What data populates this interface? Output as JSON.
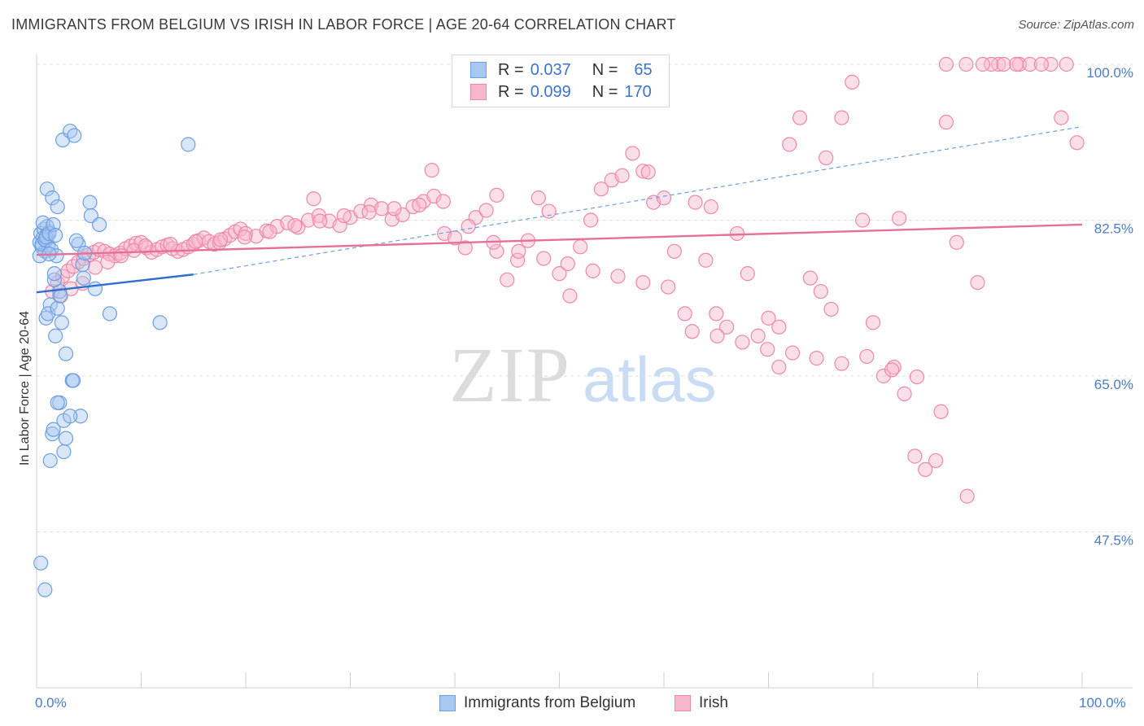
{
  "title": "IMMIGRANTS FROM BELGIUM VS IRISH IN LABOR FORCE | AGE 20-64 CORRELATION CHART",
  "source": "Source: ZipAtlas.com",
  "watermark": {
    "zip": "ZIP",
    "atlas": "atlas"
  },
  "legend": {
    "rows": [
      {
        "r_label": "R =",
        "r_value": "0.037",
        "n_label": "N =",
        "n_value": "65",
        "color": "#a8c8f0",
        "stroke": "#6d9fe0"
      },
      {
        "r_label": "R =",
        "r_value": "0.099",
        "n_label": "N =",
        "n_value": "170",
        "color": "#f7b8cc",
        "stroke": "#ee87a8"
      }
    ]
  },
  "chart_data": {
    "type": "scatter",
    "title": "IMMIGRANTS FROM BELGIUM VS IRISH IN LABOR FORCE | AGE 20-64 CORRELATION CHART",
    "xlabel": "",
    "ylabel": "In Labor Force | Age 20-64",
    "xlim": [
      0,
      100
    ],
    "ylim": [
      30,
      100
    ],
    "x_tick_labels": [
      "0.0%",
      "100.0%"
    ],
    "y_ticks": [
      47.5,
      65.0,
      82.5,
      100.0
    ],
    "y_tick_labels": [
      "47.5%",
      "65.0%",
      "82.5%",
      "100.0%"
    ],
    "grid": "horizontal dashed",
    "legend_position": "bottom",
    "series": [
      {
        "name": "Immigrants from Belgium",
        "color": "#a8c8f0",
        "stroke": "#6d9fe0",
        "trend": {
          "x": [
            0,
            15
          ],
          "y": [
            74.4,
            76.4
          ],
          "color": "#2f6fd0"
        },
        "x": [
          0.3,
          0.4,
          0.5,
          0.6,
          0.7,
          0.8,
          0.9,
          1.0,
          1.1,
          1.2,
          0.3,
          0.5,
          0.8,
          1.0,
          0.6,
          0.9,
          1.2,
          1.4,
          1.6,
          1.8,
          1.0,
          1.5,
          2.0,
          2.5,
          3.2,
          3.6,
          4.0,
          4.4,
          4.6,
          3.8,
          2.2,
          1.7,
          1.3,
          0.9,
          1.1,
          2.0,
          2.4,
          2.8,
          3.4,
          4.2,
          4.5,
          1.8,
          2.2,
          2.6,
          2.0,
          1.5,
          1.3,
          1.6,
          2.6,
          2.8,
          3.5,
          3.2,
          1.7,
          2.3,
          1.9,
          5.1,
          5.2,
          6.0,
          7.0,
          11.8,
          14.5,
          0.4,
          0.8,
          1.2,
          5.6
        ],
        "y": [
          80.0,
          81.0,
          79.5,
          80.5,
          81.5,
          79.0,
          80.2,
          80.8,
          79.7,
          81.2,
          78.5,
          79.8,
          80.3,
          81.8,
          82.2,
          80.6,
          81.0,
          79.2,
          82.0,
          80.8,
          86.0,
          85.0,
          84.0,
          91.5,
          92.5,
          92.0,
          79.8,
          77.5,
          78.8,
          80.2,
          74.5,
          75.8,
          73.0,
          71.5,
          72.0,
          72.6,
          71.0,
          67.5,
          64.5,
          60.5,
          76.0,
          69.5,
          62.0,
          60.0,
          62.0,
          58.5,
          55.5,
          59.0,
          56.5,
          58.0,
          64.5,
          60.5,
          76.5,
          74.0,
          78.5,
          84.5,
          83.0,
          82.0,
          72.0,
          71.0,
          91.0,
          44.0,
          41.0,
          78.7,
          74.8
        ]
      },
      {
        "name": "Irish",
        "color": "#f7b8cc",
        "stroke": "#ee87a8",
        "trend": {
          "x": [
            0,
            100
          ],
          "y": [
            78.6,
            82.0
          ],
          "color": "#e5709a"
        },
        "trend_dashed": {
          "x": [
            15,
            100
          ],
          "y": [
            76.4,
            93.0
          ],
          "color": "#6d9fe0"
        },
        "x": [
          1.5,
          2.0,
          2.5,
          3.0,
          3.5,
          4.0,
          4.5,
          5.0,
          5.5,
          6.0,
          6.5,
          7.0,
          7.5,
          8.0,
          8.5,
          9.0,
          9.5,
          10.0,
          10.5,
          11.0,
          11.5,
          12.0,
          12.5,
          13.0,
          13.5,
          14.0,
          14.5,
          15.0,
          15.5,
          16.0,
          16.5,
          17.0,
          17.5,
          18.0,
          18.5,
          19.0,
          19.5,
          20.0,
          21.0,
          22.0,
          23.0,
          24.0,
          25.0,
          26.0,
          27.0,
          28.0,
          29.0,
          30.0,
          31.0,
          32.0,
          33.0,
          34.0,
          35.0,
          36.0,
          37.0,
          38.0,
          39.0,
          40.0,
          41.0,
          42.0,
          43.0,
          44.0,
          45.0,
          46.0,
          47.0,
          48.0,
          49.0,
          50.0,
          51.0,
          52.0,
          53.0,
          54.0,
          55.0,
          56.0,
          57.0,
          58.0,
          59.0,
          60.0,
          61.0,
          62.0,
          63.0,
          64.0,
          65.0,
          66.0,
          67.0,
          68.0,
          69.0,
          70.0,
          71.0,
          72.0,
          73.0,
          74.0,
          75.0,
          76.0,
          77.0,
          78.0,
          79.0,
          80.0,
          81.0,
          82.0,
          83.0,
          84.0,
          85.0,
          86.0,
          87.0,
          88.0,
          89.0,
          90.0,
          92.0,
          94.0,
          95.0,
          97.0,
          98.0,
          2.2,
          3.3,
          4.4,
          5.6,
          6.8,
          8.1,
          9.3,
          10.4,
          12.8,
          15.2,
          17.6,
          19.9,
          22.3,
          24.7,
          27.1,
          29.4,
          31.8,
          34.2,
          36.6,
          38.9,
          41.3,
          43.7,
          46.1,
          48.5,
          50.8,
          53.2,
          55.6,
          58.0,
          60.4,
          62.7,
          65.1,
          67.5,
          69.9,
          72.3,
          74.6,
          77.0,
          79.4,
          81.8,
          84.2,
          86.5,
          88.9,
          91.3,
          93.7,
          96.1,
          98.5,
          99.5,
          26.5,
          37.8,
          44.0,
          58.5,
          64.5,
          71.0,
          75.5,
          82.5,
          87.0,
          90.5,
          92.5
        ],
        "y": [
          74.5,
          75.5,
          76.2,
          76.8,
          77.3,
          77.8,
          78.2,
          78.6,
          78.9,
          79.2,
          79.0,
          78.7,
          78.5,
          78.8,
          79.3,
          79.6,
          79.9,
          80.0,
          79.4,
          78.9,
          79.2,
          79.5,
          79.7,
          79.3,
          79.0,
          79.2,
          79.5,
          79.8,
          80.2,
          80.5,
          80.1,
          79.8,
          80.0,
          80.4,
          80.8,
          81.2,
          81.5,
          81.0,
          80.7,
          81.3,
          81.8,
          82.2,
          81.7,
          82.5,
          83.0,
          82.4,
          81.9,
          82.8,
          83.5,
          84.2,
          83.8,
          82.6,
          83.1,
          84.0,
          84.6,
          85.2,
          81.0,
          80.5,
          79.4,
          82.8,
          83.6,
          79.0,
          75.8,
          78.0,
          80.2,
          85.0,
          83.5,
          76.5,
          74.0,
          79.5,
          82.5,
          86.0,
          87.0,
          87.5,
          90.0,
          88.0,
          84.5,
          85.0,
          79.0,
          72.0,
          84.5,
          78.0,
          72.0,
          70.5,
          81.0,
          76.5,
          69.5,
          71.5,
          66.0,
          91.0,
          94.0,
          76.0,
          74.5,
          72.5,
          94.0,
          98.0,
          82.5,
          71.0,
          65.0,
          66.0,
          63.0,
          56.0,
          54.5,
          55.5,
          93.5,
          80.0,
          51.5,
          75.5,
          100.0,
          100.0,
          100.0,
          100.0,
          94.0,
          74.0,
          74.8,
          75.4,
          77.2,
          77.8,
          78.5,
          79.1,
          79.6,
          79.8,
          80.1,
          80.3,
          80.6,
          81.2,
          81.9,
          82.4,
          83.0,
          83.4,
          83.8,
          84.2,
          84.6,
          81.8,
          80.0,
          79.0,
          78.2,
          77.6,
          76.8,
          76.2,
          75.5,
          75.0,
          70.0,
          69.5,
          68.8,
          68.0,
          67.6,
          67.0,
          66.4,
          67.2,
          65.7,
          64.9,
          61.0,
          100.0,
          100.0,
          100.0,
          100.0,
          100.0,
          91.2,
          84.9,
          88.1,
          85.3,
          87.9,
          84.0,
          70.5,
          89.5,
          82.7,
          100.0,
          100.0,
          100.0
        ]
      }
    ]
  }
}
